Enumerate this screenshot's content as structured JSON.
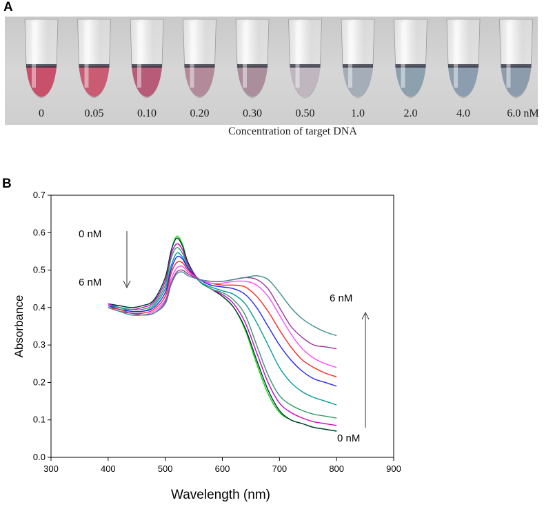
{
  "panel_a": {
    "label": "A",
    "concentrations": [
      "0",
      "0.05",
      "0.10",
      "0.20",
      "0.30",
      "0.50",
      "1.0",
      "2.0",
      "4.0",
      "6.0 nM"
    ],
    "caption": "Concentration of target DNA",
    "tube_colors": [
      "#c8506a",
      "#c95b73",
      "#b75b78",
      "#b28a9a",
      "#ab8e9c",
      "#bfb6c0",
      "#a4adb8",
      "#8da0ae",
      "#8c9db0",
      "#8d9cac"
    ]
  },
  "panel_b": {
    "label": "B",
    "annotations": {
      "top_left": "0 nM",
      "bottom_left": "6 nM",
      "top_right": "6 nM",
      "bottom_right": "0 nM"
    }
  },
  "chart_data": {
    "type": "line",
    "xlabel": "Wavelength (nm)",
    "ylabel": "Absorbance",
    "xlim": [
      300,
      900
    ],
    "ylim": [
      0,
      0.7
    ],
    "xticks": [
      300,
      400,
      500,
      600,
      700,
      800,
      900
    ],
    "yticks": [
      "0.0",
      "0.1",
      "0.2",
      "0.3",
      "0.4",
      "0.5",
      "0.6",
      "0.7"
    ],
    "x": [
      400,
      420,
      440,
      460,
      480,
      500,
      510,
      520,
      530,
      540,
      560,
      580,
      600,
      620,
      640,
      660,
      680,
      700,
      720,
      740,
      760,
      780,
      800
    ],
    "series": [
      {
        "color": "#00e000",
        "values": [
          0.41,
          0.405,
          0.4,
          0.405,
          0.42,
          0.48,
          0.55,
          0.59,
          0.57,
          0.52,
          0.47,
          0.45,
          0.43,
          0.4,
          0.34,
          0.25,
          0.17,
          0.12,
          0.1,
          0.09,
          0.08,
          0.075,
          0.07
        ]
      },
      {
        "color": "#003333",
        "values": [
          0.41,
          0.405,
          0.4,
          0.405,
          0.42,
          0.48,
          0.55,
          0.585,
          0.565,
          0.52,
          0.47,
          0.45,
          0.43,
          0.4,
          0.345,
          0.26,
          0.18,
          0.125,
          0.1,
          0.09,
          0.08,
          0.075,
          0.07
        ]
      },
      {
        "color": "#cc00cc",
        "values": [
          0.41,
          0.4,
          0.395,
          0.4,
          0.415,
          0.47,
          0.54,
          0.57,
          0.555,
          0.515,
          0.47,
          0.45,
          0.435,
          0.41,
          0.36,
          0.28,
          0.2,
          0.145,
          0.12,
          0.105,
          0.095,
          0.09,
          0.085
        ]
      },
      {
        "color": "#339966",
        "values": [
          0.405,
          0.4,
          0.395,
          0.395,
          0.41,
          0.46,
          0.53,
          0.56,
          0.545,
          0.51,
          0.47,
          0.45,
          0.44,
          0.42,
          0.38,
          0.3,
          0.22,
          0.165,
          0.14,
          0.125,
          0.115,
          0.11,
          0.105
        ]
      },
      {
        "color": "#009999",
        "values": [
          0.405,
          0.4,
          0.39,
          0.39,
          0.405,
          0.45,
          0.51,
          0.545,
          0.535,
          0.505,
          0.47,
          0.455,
          0.445,
          0.435,
          0.41,
          0.36,
          0.3,
          0.24,
          0.2,
          0.175,
          0.16,
          0.15,
          0.14
        ]
      },
      {
        "color": "#2222ff",
        "values": [
          0.405,
          0.395,
          0.39,
          0.39,
          0.4,
          0.44,
          0.5,
          0.535,
          0.53,
          0.505,
          0.475,
          0.46,
          0.455,
          0.45,
          0.435,
          0.4,
          0.35,
          0.3,
          0.26,
          0.23,
          0.21,
          0.2,
          0.19
        ]
      },
      {
        "color": "#ff2222",
        "values": [
          0.4,
          0.395,
          0.385,
          0.385,
          0.395,
          0.43,
          0.49,
          0.52,
          0.52,
          0.5,
          0.475,
          0.465,
          0.46,
          0.46,
          0.455,
          0.43,
          0.39,
          0.34,
          0.295,
          0.26,
          0.24,
          0.225,
          0.215
        ]
      },
      {
        "color": "#ff44ff",
        "values": [
          0.4,
          0.39,
          0.385,
          0.38,
          0.39,
          0.42,
          0.475,
          0.505,
          0.51,
          0.495,
          0.475,
          0.465,
          0.465,
          0.47,
          0.47,
          0.46,
          0.43,
          0.38,
          0.33,
          0.29,
          0.265,
          0.25,
          0.24
        ]
      },
      {
        "color": "#993399",
        "values": [
          0.4,
          0.39,
          0.385,
          0.38,
          0.385,
          0.415,
          0.465,
          0.495,
          0.5,
          0.49,
          0.475,
          0.47,
          0.47,
          0.475,
          0.48,
          0.475,
          0.45,
          0.4,
          0.35,
          0.32,
          0.3,
          0.295,
          0.29
        ]
      },
      {
        "color": "#3d8b8b",
        "values": [
          0.4,
          0.39,
          0.38,
          0.38,
          0.385,
          0.41,
          0.46,
          0.49,
          0.495,
          0.485,
          0.475,
          0.47,
          0.47,
          0.475,
          0.48,
          0.485,
          0.475,
          0.44,
          0.4,
          0.37,
          0.35,
          0.335,
          0.325
        ]
      }
    ]
  }
}
